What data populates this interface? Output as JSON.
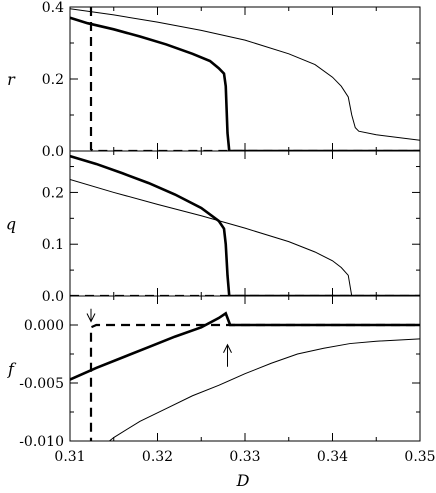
{
  "chart_data": [
    {
      "type": "line",
      "ylabel": "r",
      "xlim": [
        0.31,
        0.35
      ],
      "ylim": [
        0.0,
        0.4
      ],
      "yticks": [
        0.0,
        0.2,
        0.4
      ],
      "ytick_labels": [
        "0.0",
        "0.2",
        "0.4"
      ],
      "series": [
        {
          "style": "thin",
          "x": [
            0.31,
            0.315,
            0.32,
            0.325,
            0.33,
            0.335,
            0.338,
            0.34,
            0.341,
            0.3418,
            0.3422,
            0.3426,
            0.343,
            0.345,
            0.35
          ],
          "y": [
            0.395,
            0.378,
            0.358,
            0.335,
            0.308,
            0.27,
            0.24,
            0.205,
            0.18,
            0.15,
            0.1,
            0.065,
            0.055,
            0.045,
            0.03
          ]
        },
        {
          "style": "thick",
          "x": [
            0.31,
            0.312,
            0.315,
            0.318,
            0.321,
            0.324,
            0.326,
            0.327,
            0.3276,
            0.3278,
            0.328,
            0.3282,
            0.33,
            0.35
          ],
          "y": [
            0.37,
            0.355,
            0.338,
            0.318,
            0.296,
            0.27,
            0.25,
            0.23,
            0.215,
            0.18,
            0.05,
            0.0,
            0.0,
            0.0
          ]
        },
        {
          "style": "dashed",
          "x": [
            0.3124,
            0.3124,
            0.3128,
            0.35
          ],
          "y": [
            0.4,
            0.005,
            0.0,
            0.0
          ]
        }
      ]
    },
    {
      "type": "line",
      "ylabel": "q",
      "xlim": [
        0.31,
        0.35
      ],
      "ylim": [
        0.0,
        0.28
      ],
      "yticks": [
        0.0,
        0.1,
        0.2
      ],
      "ytick_labels": [
        "0.0",
        "0.1",
        "0.2"
      ],
      "series": [
        {
          "style": "thin",
          "x": [
            0.31,
            0.315,
            0.32,
            0.325,
            0.33,
            0.335,
            0.338,
            0.34,
            0.341,
            0.3418,
            0.3422,
            0.35
          ],
          "y": [
            0.225,
            0.2,
            0.177,
            0.155,
            0.131,
            0.105,
            0.085,
            0.068,
            0.055,
            0.04,
            0.0,
            0.0
          ]
        },
        {
          "style": "thick",
          "x": [
            0.31,
            0.313,
            0.316,
            0.319,
            0.322,
            0.325,
            0.327,
            0.3276,
            0.3278,
            0.328,
            0.3282,
            0.33,
            0.35
          ],
          "y": [
            0.27,
            0.255,
            0.237,
            0.218,
            0.196,
            0.17,
            0.145,
            0.13,
            0.1,
            0.04,
            0.0,
            0.0,
            0.0
          ]
        },
        {
          "style": "dashed",
          "x": [
            0.31,
            0.35
          ],
          "y": [
            0.0,
            0.0
          ]
        }
      ]
    },
    {
      "type": "line",
      "ylabel": "f",
      "xlabel": "D",
      "xlim": [
        0.31,
        0.35
      ],
      "ylim": [
        -0.01,
        0.0025
      ],
      "yticks": [
        -0.01,
        -0.005,
        0.0
      ],
      "ytick_labels": [
        "-0.010",
        "-0.005",
        "0.000"
      ],
      "xticks": [
        0.31,
        0.32,
        0.33,
        0.34,
        0.35
      ],
      "xtick_labels": [
        "0.31",
        "0.32",
        "0.33",
        "0.34",
        "0.35"
      ],
      "series": [
        {
          "style": "thin",
          "x": [
            0.3145,
            0.315,
            0.318,
            0.321,
            0.324,
            0.327,
            0.33,
            0.333,
            0.336,
            0.339,
            0.342,
            0.345,
            0.35
          ],
          "y": [
            -0.01,
            -0.0097,
            -0.0083,
            -0.0072,
            -0.0061,
            -0.0052,
            -0.0042,
            -0.0033,
            -0.0025,
            -0.002,
            -0.0016,
            -0.0014,
            -0.0012
          ]
        },
        {
          "style": "thick",
          "x": [
            0.31,
            0.313,
            0.316,
            0.319,
            0.322,
            0.325,
            0.327,
            0.3278,
            0.3283,
            0.329,
            0.33,
            0.35
          ],
          "y": [
            -0.0047,
            -0.0037,
            -0.0028,
            -0.0019,
            -0.001,
            -0.0002,
            0.0006,
            0.001,
            0.0,
            0.0,
            0.0,
            0.0
          ]
        },
        {
          "style": "dashed",
          "x": [
            0.3124,
            0.3124,
            0.313,
            0.35
          ],
          "y": [
            -0.0105,
            -0.0002,
            0.0,
            0.0
          ]
        }
      ],
      "annotations": [
        {
          "type": "arrow-down",
          "x": 0.3124,
          "y_tail": 0.0014,
          "y_head": 0.0003
        },
        {
          "type": "arrow-up",
          "x": 0.328,
          "y_tail": -0.0036,
          "y_head": -0.0017
        }
      ]
    }
  ]
}
